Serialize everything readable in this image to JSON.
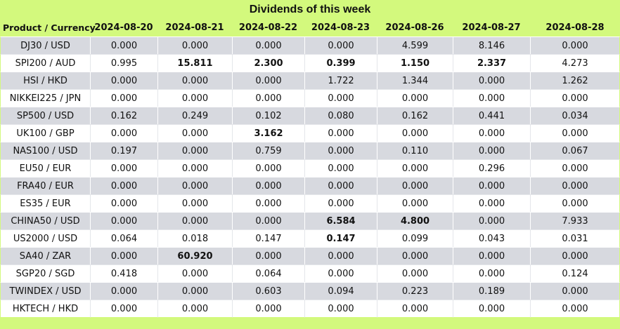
{
  "title": "Dividends of this week",
  "header": {
    "product": "Product / Currency",
    "dates": [
      "2024-08-20",
      "2024-08-21",
      "2024-08-22",
      "2024-08-23",
      "2024-08-26",
      "2024-08-27",
      "2024-08-28"
    ]
  },
  "rows": [
    {
      "product": "DJ30 / USD",
      "values": [
        "0.000",
        "0.000",
        "0.000",
        "0.000",
        "4.599",
        "8.146",
        "0.000"
      ],
      "bold": [
        false,
        false,
        false,
        false,
        false,
        false,
        false
      ]
    },
    {
      "product": "SPI200 / AUD",
      "values": [
        "0.995",
        "15.811",
        "2.300",
        "0.399",
        "1.150",
        "2.337",
        "4.273"
      ],
      "bold": [
        false,
        true,
        true,
        true,
        true,
        true,
        false
      ]
    },
    {
      "product": "HSI / HKD",
      "values": [
        "0.000",
        "0.000",
        "0.000",
        "1.722",
        "1.344",
        "0.000",
        "1.262"
      ],
      "bold": [
        false,
        false,
        false,
        false,
        false,
        false,
        false
      ]
    },
    {
      "product": "NIKKEI225 / JPN",
      "values": [
        "0.000",
        "0.000",
        "0.000",
        "0.000",
        "0.000",
        "0.000",
        "0.000"
      ],
      "bold": [
        false,
        false,
        false,
        false,
        false,
        false,
        false
      ]
    },
    {
      "product": "SP500 / USD",
      "values": [
        "0.162",
        "0.249",
        "0.102",
        "0.080",
        "0.162",
        "0.441",
        "0.034"
      ],
      "bold": [
        false,
        false,
        false,
        false,
        false,
        false,
        false
      ]
    },
    {
      "product": "UK100 / GBP",
      "values": [
        "0.000",
        "0.000",
        "3.162",
        "0.000",
        "0.000",
        "0.000",
        "0.000"
      ],
      "bold": [
        false,
        false,
        true,
        false,
        false,
        false,
        false
      ]
    },
    {
      "product": "NAS100 / USD",
      "values": [
        "0.197",
        "0.000",
        "0.759",
        "0.000",
        "0.110",
        "0.000",
        "0.067"
      ],
      "bold": [
        false,
        false,
        false,
        false,
        false,
        false,
        false
      ]
    },
    {
      "product": "EU50 / EUR",
      "values": [
        "0.000",
        "0.000",
        "0.000",
        "0.000",
        "0.000",
        "0.296",
        "0.000"
      ],
      "bold": [
        false,
        false,
        false,
        false,
        false,
        false,
        false
      ]
    },
    {
      "product": "FRA40 / EUR",
      "values": [
        "0.000",
        "0.000",
        "0.000",
        "0.000",
        "0.000",
        "0.000",
        "0.000"
      ],
      "bold": [
        false,
        false,
        false,
        false,
        false,
        false,
        false
      ]
    },
    {
      "product": "ES35 / EUR",
      "values": [
        "0.000",
        "0.000",
        "0.000",
        "0.000",
        "0.000",
        "0.000",
        "0.000"
      ],
      "bold": [
        false,
        false,
        false,
        false,
        false,
        false,
        false
      ]
    },
    {
      "product": "CHINA50 / USD",
      "values": [
        "0.000",
        "0.000",
        "0.000",
        "6.584",
        "4.800",
        "0.000",
        "7.933"
      ],
      "bold": [
        false,
        false,
        false,
        true,
        true,
        false,
        false
      ]
    },
    {
      "product": "US2000 / USD",
      "values": [
        "0.064",
        "0.018",
        "0.147",
        "0.147",
        "0.099",
        "0.043",
        "0.031"
      ],
      "bold": [
        false,
        false,
        false,
        true,
        false,
        false,
        false
      ]
    },
    {
      "product": "SA40 / ZAR",
      "values": [
        "0.000",
        "60.920",
        "0.000",
        "0.000",
        "0.000",
        "0.000",
        "0.000"
      ],
      "bold": [
        false,
        true,
        false,
        false,
        false,
        false,
        false
      ]
    },
    {
      "product": "SGP20 / SGD",
      "values": [
        "0.418",
        "0.000",
        "0.064",
        "0.000",
        "0.000",
        "0.000",
        "0.124"
      ],
      "bold": [
        false,
        false,
        false,
        false,
        false,
        false,
        false
      ]
    },
    {
      "product": "TWINDEX / USD",
      "values": [
        "0.000",
        "0.000",
        "0.603",
        "0.094",
        "0.223",
        "0.189",
        "0.000"
      ],
      "bold": [
        false,
        false,
        false,
        false,
        false,
        false,
        false
      ]
    },
    {
      "product": "HKTECH / HKD",
      "values": [
        "0.000",
        "0.000",
        "0.000",
        "0.000",
        "0.000",
        "0.000",
        "0.000"
      ],
      "bold": [
        false,
        false,
        false,
        false,
        false,
        false,
        false
      ]
    }
  ],
  "colors": {
    "header_bg": "#d3f97d",
    "row_alt_bg": "#d7d9df",
    "row_bg": "#ffffff"
  }
}
